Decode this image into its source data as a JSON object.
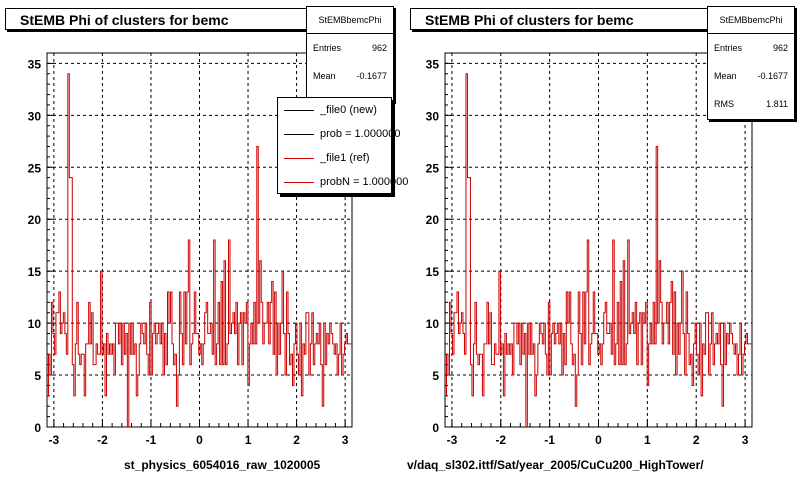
{
  "colors": {
    "ref": "#cc0000",
    "new": "#000000",
    "grid": "#000000",
    "background": "#ffffff"
  },
  "footer_text": "",
  "left_panel": {
    "title": "StEMB Phi of clusters for bemc",
    "stats": {
      "name": "StEMBbemcPhi",
      "rows": [
        {
          "label": "Entries",
          "value": "962"
        },
        {
          "label": "Mean",
          "value": "-0.1677"
        }
      ]
    },
    "legend": [
      {
        "label": "_file0 (new)",
        "color": "#000000"
      },
      {
        "label": "prob = 1.000000",
        "color": "#000000"
      },
      {
        "label": "_file1 (ref)",
        "color": "#cc0000"
      },
      {
        "label": "probN = 1.000000",
        "color": "#cc0000"
      }
    ],
    "xlabel": "st_physics_6054016_raw_1020005"
  },
  "right_panel": {
    "title": "StEMB Phi of clusters for bemc",
    "stats": {
      "name": "StEMBbemcPhi",
      "rows": [
        {
          "label": "Entries",
          "value": "962"
        },
        {
          "label": "Mean",
          "value": "-0.1677"
        },
        {
          "label": "RMS",
          "value": "1.811"
        }
      ]
    },
    "xlabel": "v/daq_sl302.ittf/Sat/year_2005/CuCu200_HighTower/"
  },
  "chart_data": [
    {
      "type": "histogram",
      "title": "StEMB Phi of clusters for bemc",
      "xlabel": "st_physics_6054016_raw_1020005",
      "xlim": [
        -3.1416,
        3.1416
      ],
      "ylim": [
        0,
        36
      ],
      "xticks": [
        -3,
        -2,
        -1,
        0,
        1,
        2,
        3
      ],
      "yticks": [
        0,
        5,
        10,
        15,
        20,
        25,
        30,
        35
      ],
      "grid": true,
      "series": [
        {
          "name": "_file1 (ref)",
          "color": "#cc0000",
          "values": [
            3,
            7,
            5,
            12,
            9,
            7,
            11,
            11,
            13,
            9,
            10,
            11,
            9,
            7,
            34,
            24,
            24,
            6,
            3,
            8,
            12,
            7,
            6,
            7,
            7,
            3,
            8,
            8,
            12,
            8,
            11,
            6,
            6,
            8,
            7,
            7,
            15,
            7,
            8,
            3,
            9,
            7,
            8,
            7,
            8,
            5,
            10,
            10,
            8,
            10,
            6,
            10,
            7,
            9,
            0,
            10,
            7,
            10,
            7,
            8,
            3,
            5,
            8,
            10,
            9,
            8,
            10,
            7,
            5,
            12,
            5,
            9,
            10,
            8,
            9,
            10,
            8,
            10,
            5,
            9,
            6,
            13,
            10,
            13,
            8,
            6,
            7,
            2,
            5,
            13,
            9,
            6,
            13,
            8,
            13,
            18,
            6,
            8,
            9,
            13,
            9,
            9,
            7,
            8,
            6,
            8,
            11,
            12,
            9,
            9,
            10,
            7,
            18,
            6,
            8,
            12,
            6,
            14,
            6,
            16,
            6,
            8,
            18,
            9,
            10,
            11,
            9,
            12,
            6,
            10,
            11,
            6,
            11,
            10,
            12,
            4,
            8,
            10,
            8,
            12,
            8,
            27,
            10,
            16,
            12,
            8,
            10,
            10,
            12,
            8,
            12,
            14,
            7,
            13,
            5,
            10,
            7,
            10,
            15,
            9,
            5,
            13,
            9,
            6,
            7,
            4,
            8,
            10,
            7,
            5,
            10,
            3,
            8,
            7,
            11,
            11,
            5,
            8,
            11,
            6,
            8,
            9,
            8,
            10,
            6,
            2,
            10,
            6,
            9,
            8,
            10,
            9,
            8,
            7,
            8,
            5,
            7,
            10,
            5,
            7,
            8,
            9,
            8,
            8,
            8
          ]
        }
      ]
    },
    {
      "type": "histogram",
      "title": "StEMB Phi of clusters for bemc",
      "xlabel": "v/daq_sl302.ittf/Sat/year_2005/CuCu200_HighTower/",
      "xlim": [
        -3.1416,
        3.1416
      ],
      "ylim": [
        0,
        36
      ],
      "xticks": [
        -3,
        -2,
        -1,
        0,
        1,
        2,
        3
      ],
      "yticks": [
        0,
        5,
        10,
        15,
        20,
        25,
        30,
        35
      ],
      "grid": true,
      "series": [
        {
          "name": "StEMBbemcPhi",
          "color": "#cc0000",
          "values": [
            3,
            7,
            5,
            12,
            9,
            7,
            11,
            11,
            13,
            9,
            10,
            11,
            9,
            7,
            34,
            24,
            24,
            6,
            3,
            8,
            12,
            7,
            6,
            7,
            7,
            3,
            8,
            8,
            12,
            8,
            11,
            6,
            6,
            8,
            7,
            7,
            15,
            7,
            8,
            3,
            9,
            7,
            8,
            7,
            8,
            5,
            10,
            10,
            8,
            10,
            6,
            10,
            7,
            9,
            0,
            10,
            7,
            10,
            7,
            8,
            3,
            5,
            8,
            10,
            9,
            8,
            10,
            7,
            5,
            12,
            5,
            9,
            10,
            8,
            9,
            10,
            8,
            10,
            5,
            9,
            6,
            13,
            10,
            13,
            8,
            6,
            7,
            2,
            5,
            13,
            9,
            6,
            13,
            8,
            13,
            18,
            6,
            8,
            9,
            13,
            9,
            9,
            7,
            8,
            6,
            8,
            11,
            12,
            9,
            9,
            10,
            7,
            18,
            6,
            8,
            12,
            6,
            14,
            6,
            16,
            6,
            8,
            18,
            9,
            10,
            11,
            9,
            12,
            6,
            10,
            11,
            6,
            11,
            10,
            12,
            4,
            8,
            10,
            8,
            12,
            8,
            27,
            10,
            16,
            12,
            8,
            10,
            10,
            12,
            8,
            12,
            14,
            7,
            13,
            5,
            10,
            7,
            10,
            15,
            9,
            5,
            13,
            9,
            6,
            7,
            4,
            8,
            10,
            7,
            5,
            10,
            3,
            8,
            7,
            11,
            11,
            5,
            8,
            11,
            6,
            8,
            9,
            8,
            10,
            6,
            2,
            10,
            6,
            9,
            8,
            10,
            9,
            8,
            7,
            8,
            5,
            7,
            10,
            5,
            7,
            8,
            9,
            8,
            8,
            8
          ]
        }
      ]
    }
  ]
}
